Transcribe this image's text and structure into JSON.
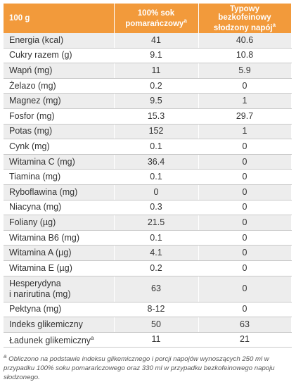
{
  "table": {
    "columns": [
      {
        "label": "100 g"
      },
      {
        "label": "100% sok pomarańczowy",
        "note": "a"
      },
      {
        "label": "Typowy bezkofeinowy słodzony napój",
        "note": "a"
      }
    ],
    "rows": [
      {
        "cells": [
          "Energia (kcal)",
          "41",
          "40.6"
        ]
      },
      {
        "cells": [
          "Cukry razem (g)",
          "9.1",
          "10.8"
        ]
      },
      {
        "cells": [
          "Wapń (mg)",
          "11",
          "5.9"
        ]
      },
      {
        "cells": [
          "Żelazo (mg)",
          "0.2",
          "0"
        ]
      },
      {
        "cells": [
          "Magnez (mg)",
          "9.5",
          "1"
        ]
      },
      {
        "cells": [
          "Fosfor (mg)",
          "15.3",
          "29.7"
        ]
      },
      {
        "cells": [
          "Potas (mg)",
          "152",
          "1"
        ]
      },
      {
        "cells": [
          "Cynk (mg)",
          "0.1",
          "0"
        ]
      },
      {
        "cells": [
          "Witamina C (mg)",
          "36.4",
          "0"
        ]
      },
      {
        "cells": [
          "Tiamina (mg)",
          "0.1",
          "0"
        ]
      },
      {
        "cells": [
          "Ryboflawina (mg)",
          "0",
          "0"
        ]
      },
      {
        "cells": [
          "Niacyna (mg)",
          "0.3",
          "0"
        ]
      },
      {
        "cells": [
          "Foliany (µg)",
          "21.5",
          "0"
        ]
      },
      {
        "cells": [
          "Witamina B6 (mg)",
          "0.1",
          "0"
        ]
      },
      {
        "cells": [
          "Witamina A (µg)",
          "4.1",
          "0"
        ]
      },
      {
        "cells": [
          "Witamina E (µg)",
          "0.2",
          "0"
        ]
      },
      {
        "cells": [
          "Hesperydyna\ni narirutina (mg)",
          "63",
          "0"
        ]
      },
      {
        "cells": [
          "Pektyna (mg)",
          "8-12",
          "0"
        ]
      },
      {
        "cells": [
          "Indeks glikemiczny",
          "50",
          "63"
        ]
      },
      {
        "cells": [
          "Ładunek glikemiczny",
          "11",
          "21"
        ],
        "note": "a"
      }
    ]
  },
  "footnote": {
    "marker": "a",
    "text": "Obliczono na podstawie indeksu glikemicznego i porcji napojów wynoszących 250 ml w przypadku 100% soku pomarańczowego oraz 330 ml w przypadku bezkofeinowego napoju słodzonego."
  }
}
